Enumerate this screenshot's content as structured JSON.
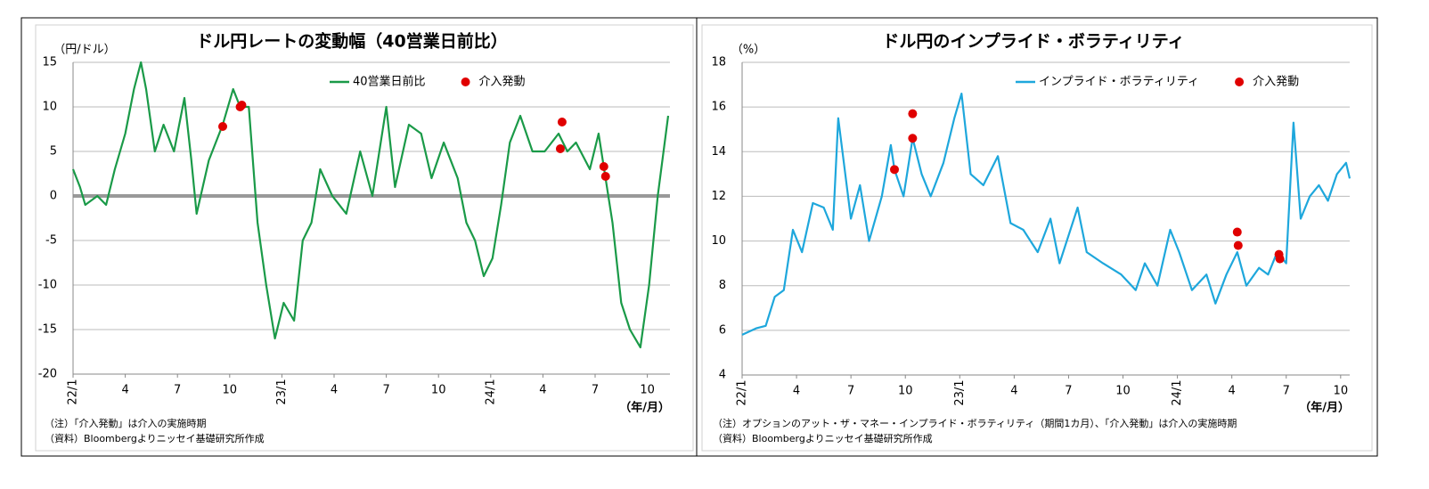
{
  "chart_data": [
    {
      "type": "line",
      "title": "ドル円レートの変動幅（40営業日前比）",
      "y_label": "（円/ドル）",
      "x_label": "（年/月）",
      "notes": [
        "（注）「介入発動」は介入の実施時期",
        "（資料）Bloombergよりニッセイ基礎研究所作成"
      ],
      "xlim": [
        0,
        34.3
      ],
      "ylim": [
        -20,
        15
      ],
      "yticks": [
        -20,
        -15,
        -10,
        -5,
        0,
        5,
        10,
        15
      ],
      "xticks": [
        {
          "value": 0,
          "label": "22/1"
        },
        {
          "value": 3,
          "label": "4"
        },
        {
          "value": 6,
          "label": "7"
        },
        {
          "value": 9,
          "label": "10"
        },
        {
          "value": 12,
          "label": "23/1"
        },
        {
          "value": 15,
          "label": "4"
        },
        {
          "value": 18,
          "label": "7"
        },
        {
          "value": 21,
          "label": "10"
        },
        {
          "value": 24,
          "label": "24/1"
        },
        {
          "value": 27,
          "label": "4"
        },
        {
          "value": 30,
          "label": "7"
        },
        {
          "value": 33,
          "label": "10"
        }
      ],
      "grid": true,
      "negative_tick_color": "#c00000",
      "legend_position": "top",
      "series": [
        {
          "name": "40営業日前比",
          "style": "line",
          "color": "#1a9a48",
          "x": [
            0,
            0.4,
            0.7,
            1.4,
            1.9,
            2.4,
            3,
            3.5,
            3.9,
            4.2,
            4.7,
            5.2,
            5.8,
            6.4,
            6.8,
            7.1,
            7.8,
            8.6,
            9.2,
            9.6,
            10.1,
            10.6,
            11.1,
            11.6,
            12.1,
            12.7,
            13.2,
            13.7,
            14.2,
            14.9,
            15.7,
            16.5,
            17.2,
            18,
            18.5,
            19.3,
            20,
            20.6,
            21.3,
            22.1,
            22.6,
            23.1,
            23.6,
            24.1,
            24.6,
            25.1,
            25.7,
            26.4,
            27.1,
            27.9,
            28.4,
            28.9,
            29.7,
            30.2,
            31,
            31.5,
            32,
            32.6,
            33.1,
            33.6,
            34.2
          ],
          "values": [
            3,
            1,
            -1,
            0,
            -1,
            3,
            7,
            12,
            15,
            12,
            5,
            8,
            5,
            11,
            4,
            -2,
            4,
            8,
            12,
            10,
            10,
            -3,
            -10,
            -16,
            -12,
            -14,
            -5,
            -3,
            3,
            0,
            -2,
            5,
            0,
            10,
            1,
            8,
            7,
            2,
            6,
            2,
            -3,
            -5,
            -9,
            -7,
            -1,
            6,
            9,
            5,
            5,
            7,
            5,
            6,
            3,
            7,
            -3,
            -12,
            -15,
            -17,
            -10,
            0,
            9
          ]
        },
        {
          "name": "介入発動",
          "style": "scatter",
          "color": "#e00000",
          "x": [
            8.6,
            9.6,
            9.7,
            28.1,
            28.0,
            30.5,
            30.6
          ],
          "values": [
            7.8,
            10.0,
            10.2,
            8.3,
            5.3,
            3.3,
            2.2
          ]
        }
      ]
    },
    {
      "type": "line",
      "title": "ドル円のインプライド・ボラティリティ",
      "y_label": "（%）",
      "x_label": "（年/月）",
      "notes": [
        "（注）オプションのアット・ザ・マネー・インプライド・ボラティリティ（期間1カ月）、「介入発動」は介入の実施時期",
        "（資料）Bloombergよりニッセイ基礎研究所作成"
      ],
      "xlim": [
        0,
        33.5
      ],
      "ylim": [
        4,
        18
      ],
      "yticks": [
        4,
        6,
        8,
        10,
        12,
        14,
        16,
        18
      ],
      "xticks": [
        {
          "value": 0,
          "label": "22/1"
        },
        {
          "value": 3,
          "label": "4"
        },
        {
          "value": 6,
          "label": "7"
        },
        {
          "value": 9,
          "label": "10"
        },
        {
          "value": 12,
          "label": "23/1"
        },
        {
          "value": 15,
          "label": "4"
        },
        {
          "value": 18,
          "label": "7"
        },
        {
          "value": 21,
          "label": "10"
        },
        {
          "value": 24,
          "label": "24/1"
        },
        {
          "value": 27,
          "label": "4"
        },
        {
          "value": 30,
          "label": "7"
        },
        {
          "value": 33,
          "label": "10"
        }
      ],
      "grid": true,
      "legend_position": "top",
      "series": [
        {
          "name": "インプライド・ボラティリティ",
          "style": "line",
          "color": "#1ea7dc",
          "x": [
            0,
            0.8,
            1.3,
            1.8,
            2.3,
            2.8,
            3.3,
            3.9,
            4.5,
            5,
            5.3,
            6,
            6.5,
            7,
            7.7,
            8.2,
            8.4,
            8.9,
            9.4,
            9.9,
            10.4,
            11.1,
            11.7,
            12.1,
            12.6,
            13.3,
            14.1,
            14.8,
            15.5,
            16.3,
            17,
            17.5,
            18.5,
            19,
            19.9,
            20.9,
            21.7,
            22.2,
            22.9,
            23.6,
            24.1,
            24.8,
            25.6,
            26.1,
            26.7,
            27.3,
            27.8,
            28.5,
            29,
            29.5,
            30,
            30.4,
            30.8,
            31.3,
            31.8,
            32.3,
            32.8,
            33.3,
            33.5
          ],
          "values": [
            5.8,
            6.1,
            6.2,
            7.5,
            7.8,
            10.5,
            9.5,
            11.7,
            11.5,
            10.5,
            15.5,
            11,
            12.5,
            10,
            12,
            14.3,
            13.2,
            12,
            14.6,
            13,
            12,
            13.5,
            15.5,
            16.6,
            13,
            12.5,
            13.8,
            10.8,
            10.5,
            9.5,
            11,
            9,
            11.5,
            9.5,
            9,
            8.5,
            7.8,
            9,
            8,
            10.5,
            9.5,
            7.8,
            8.5,
            7.2,
            8.5,
            9.5,
            8,
            8.8,
            8.5,
            9.5,
            9,
            15.3,
            11,
            12,
            12.5,
            11.8,
            13,
            13.5,
            12.8
          ]
        },
        {
          "name": "介入発動",
          "style": "scatter",
          "color": "#e00000",
          "x": [
            8.4,
            9.4,
            9.4,
            27.3,
            27.35,
            29.6,
            29.65
          ],
          "values": [
            13.2,
            15.7,
            14.6,
            10.4,
            9.8,
            9.4,
            9.2
          ]
        }
      ]
    }
  ]
}
